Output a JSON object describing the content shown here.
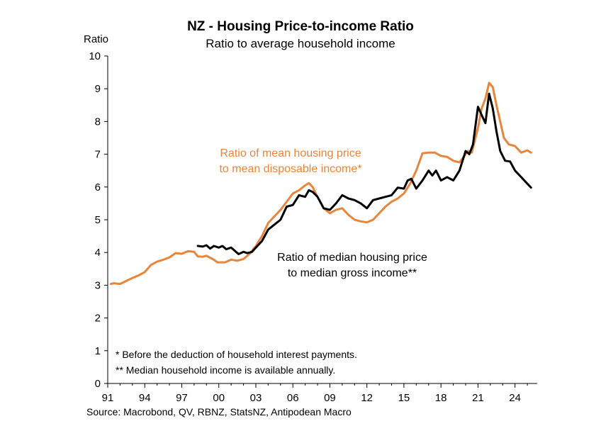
{
  "chart_data": {
    "type": "line",
    "title": "NZ - Housing Price-to-income Ratio",
    "subtitle": "Ratio to average household income",
    "ylabel": "Ratio",
    "ylim": [
      0,
      10
    ],
    "yticks": [
      "0",
      "1",
      "2",
      "3",
      "4",
      "5",
      "6",
      "7",
      "8",
      "9",
      "10"
    ],
    "xlim": [
      1991,
      2025.8
    ],
    "xticks": [
      {
        "x": 1991,
        "label": "91"
      },
      {
        "x": 1994,
        "label": "94"
      },
      {
        "x": 1997,
        "label": "97"
      },
      {
        "x": 2000,
        "label": "00"
      },
      {
        "x": 2003,
        "label": "03"
      },
      {
        "x": 2006,
        "label": "06"
      },
      {
        "x": 2009,
        "label": "09"
      },
      {
        "x": 2012,
        "label": "12"
      },
      {
        "x": 2015,
        "label": "15"
      },
      {
        "x": 2018,
        "label": "18"
      },
      {
        "x": 2021,
        "label": "21"
      },
      {
        "x": 2024,
        "label": "24"
      }
    ],
    "grid": false,
    "series": [
      {
        "name": "Ratio of mean housing price to mean disposable income*",
        "label_lines": [
          "Ratio of mean housing price",
          "to mean disposable income*"
        ],
        "color": "#E8853D",
        "points": [
          [
            1991.25,
            3.04
          ],
          [
            1991.5,
            3.06
          ],
          [
            1992,
            3.04
          ],
          [
            1992.5,
            3.13
          ],
          [
            1993,
            3.22
          ],
          [
            1993.5,
            3.3
          ],
          [
            1994,
            3.4
          ],
          [
            1994.5,
            3.62
          ],
          [
            1995,
            3.72
          ],
          [
            1995.5,
            3.78
          ],
          [
            1996,
            3.85
          ],
          [
            1996.5,
            3.98
          ],
          [
            1997,
            3.96
          ],
          [
            1997.5,
            4.04
          ],
          [
            1998,
            4.02
          ],
          [
            1998.3,
            3.88
          ],
          [
            1998.7,
            3.87
          ],
          [
            1999,
            3.9
          ],
          [
            1999.5,
            3.8
          ],
          [
            1999.9,
            3.7
          ],
          [
            2000.5,
            3.7
          ],
          [
            2001,
            3.78
          ],
          [
            2001.5,
            3.75
          ],
          [
            2002,
            3.8
          ],
          [
            2002.5,
            3.96
          ],
          [
            2003,
            4.2
          ],
          [
            2003.5,
            4.5
          ],
          [
            2004,
            4.9
          ],
          [
            2004.5,
            5.1
          ],
          [
            2005,
            5.3
          ],
          [
            2005.5,
            5.55
          ],
          [
            2006,
            5.8
          ],
          [
            2006.5,
            5.9
          ],
          [
            2007,
            6.05
          ],
          [
            2007.3,
            6.12
          ],
          [
            2007.6,
            6.0
          ],
          [
            2008,
            5.7
          ],
          [
            2008.5,
            5.35
          ],
          [
            2009,
            5.2
          ],
          [
            2009.5,
            5.3
          ],
          [
            2010,
            5.35
          ],
          [
            2010.5,
            5.15
          ],
          [
            2011,
            5.0
          ],
          [
            2011.5,
            4.95
          ],
          [
            2012,
            4.92
          ],
          [
            2012.5,
            5.0
          ],
          [
            2013,
            5.2
          ],
          [
            2013.5,
            5.4
          ],
          [
            2014,
            5.55
          ],
          [
            2014.5,
            5.65
          ],
          [
            2015,
            5.8
          ],
          [
            2015.5,
            6.1
          ],
          [
            2016,
            6.5
          ],
          [
            2016.5,
            7.03
          ],
          [
            2017,
            7.05
          ],
          [
            2017.5,
            7.05
          ],
          [
            2018,
            6.95
          ],
          [
            2018.5,
            6.92
          ],
          [
            2019,
            6.8
          ],
          [
            2019.5,
            6.75
          ],
          [
            2019.9,
            6.95
          ],
          [
            2020.2,
            7.1
          ],
          [
            2020.5,
            7.05
          ],
          [
            2021,
            7.8
          ],
          [
            2021.3,
            8.4
          ],
          [
            2021.6,
            8.7
          ],
          [
            2021.9,
            9.18
          ],
          [
            2022.2,
            9.05
          ],
          [
            2022.5,
            8.5
          ],
          [
            2022.8,
            8.0
          ],
          [
            2023.1,
            7.5
          ],
          [
            2023.5,
            7.3
          ],
          [
            2024,
            7.25
          ],
          [
            2024.5,
            7.05
          ],
          [
            2025,
            7.12
          ],
          [
            2025.3,
            7.05
          ]
        ]
      },
      {
        "name": "Ratio of median housing price to median gross income**",
        "label_lines": [
          "Ratio of median housing price",
          "to median gross income**"
        ],
        "color": "#000000",
        "points": [
          [
            1998.3,
            4.2
          ],
          [
            1998.7,
            4.18
          ],
          [
            1999,
            4.22
          ],
          [
            1999.3,
            4.12
          ],
          [
            1999.6,
            4.2
          ],
          [
            2000,
            4.15
          ],
          [
            2000.3,
            4.2
          ],
          [
            2000.6,
            4.1
          ],
          [
            2001,
            4.15
          ],
          [
            2001.3,
            4.05
          ],
          [
            2001.6,
            3.95
          ],
          [
            2002,
            4.02
          ],
          [
            2002.3,
            3.98
          ],
          [
            2002.7,
            4.02
          ],
          [
            2003,
            4.15
          ],
          [
            2003.5,
            4.35
          ],
          [
            2004,
            4.7
          ],
          [
            2004.5,
            4.85
          ],
          [
            2005,
            5.0
          ],
          [
            2005.5,
            5.4
          ],
          [
            2006,
            5.45
          ],
          [
            2006.5,
            5.75
          ],
          [
            2007,
            5.7
          ],
          [
            2007.3,
            5.9
          ],
          [
            2007.6,
            5.85
          ],
          [
            2008,
            5.7
          ],
          [
            2008.5,
            5.35
          ],
          [
            2009,
            5.3
          ],
          [
            2009.5,
            5.5
          ],
          [
            2010,
            5.75
          ],
          [
            2010.5,
            5.65
          ],
          [
            2011,
            5.6
          ],
          [
            2011.5,
            5.5
          ],
          [
            2012,
            5.35
          ],
          [
            2012.5,
            5.6
          ],
          [
            2013,
            5.65
          ],
          [
            2013.5,
            5.7
          ],
          [
            2014,
            5.75
          ],
          [
            2014.5,
            5.98
          ],
          [
            2015,
            5.95
          ],
          [
            2015.3,
            6.2
          ],
          [
            2015.6,
            6.25
          ],
          [
            2016,
            5.95
          ],
          [
            2016.5,
            6.2
          ],
          [
            2017,
            6.5
          ],
          [
            2017.3,
            6.35
          ],
          [
            2017.6,
            6.5
          ],
          [
            2018,
            6.2
          ],
          [
            2018.5,
            6.3
          ],
          [
            2019,
            6.2
          ],
          [
            2019.5,
            6.5
          ],
          [
            2020,
            7.1
          ],
          [
            2020.3,
            7.0
          ],
          [
            2020.6,
            7.3
          ],
          [
            2021,
            8.45
          ],
          [
            2021.3,
            8.2
          ],
          [
            2021.6,
            7.95
          ],
          [
            2021.9,
            8.85
          ],
          [
            2022.2,
            8.4
          ],
          [
            2022.5,
            7.7
          ],
          [
            2022.8,
            7.1
          ],
          [
            2023.2,
            6.8
          ],
          [
            2023.6,
            6.78
          ],
          [
            2024,
            6.5
          ],
          [
            2024.5,
            6.3
          ],
          [
            2025,
            6.1
          ],
          [
            2025.3,
            5.98
          ]
        ]
      }
    ],
    "notes": [
      "* Before the deduction of household interest payments.",
      "** Median household income is available annually."
    ],
    "source": "Source: Macrobond, QV, RBNZ, StatsNZ, Antipodean Macro"
  }
}
